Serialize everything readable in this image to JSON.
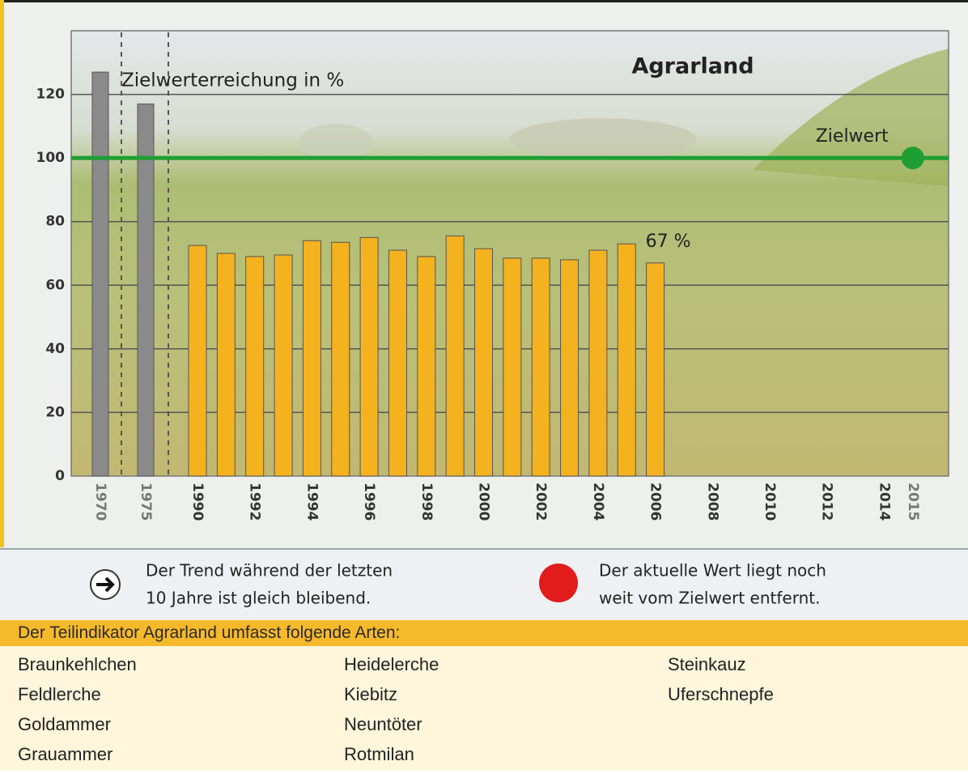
{
  "chart_data": {
    "type": "bar",
    "title": "Agrarland",
    "y_label": "Zielwerterreichung in %",
    "categories": [
      "1970",
      "1975",
      "1990",
      null,
      "1992",
      null,
      "1994",
      null,
      "1996",
      null,
      "1998",
      null,
      "2000",
      null,
      "2002",
      null,
      "2004",
      null,
      "2006",
      null,
      "2008",
      null,
      "2010",
      null,
      "2012",
      null,
      "2014",
      "2015"
    ],
    "values": [
      127,
      117,
      72.5,
      70,
      69,
      69.5,
      74,
      73.5,
      75,
      71,
      69,
      75.5,
      71.5,
      68.5,
      68.5,
      68,
      71,
      73,
      67,
      null,
      null,
      null,
      null,
      null,
      null,
      null,
      null,
      null
    ],
    "value_labels": [
      null,
      null,
      null,
      null,
      null,
      null,
      null,
      null,
      null,
      null,
      null,
      null,
      null,
      null,
      null,
      null,
      null,
      null,
      "67 %",
      null,
      null,
      null,
      null,
      null,
      null,
      null,
      null,
      null
    ],
    "colors": [
      "#8a8a8a",
      "#8a8a8a",
      "#f5b21f",
      "#f5b21f",
      "#f5b21f",
      "#f5b21f",
      "#f5b21f",
      "#f5b21f",
      "#f5b21f",
      "#f5b21f",
      "#f5b21f",
      "#f5b21f",
      "#f5b21f",
      "#f5b21f",
      "#f5b21f",
      "#f5b21f",
      "#f5b21f",
      "#f5b21f",
      "#f5b21f",
      null,
      null,
      null,
      null,
      null,
      null,
      null,
      null,
      null
    ],
    "ylim": [
      0,
      140
    ],
    "yticks": [
      0,
      20,
      40,
      60,
      80,
      100,
      120
    ],
    "grid": true,
    "target": {
      "value": 100,
      "label": "Zielwert",
      "color": "#1e9e32"
    }
  },
  "legend": {
    "trend": [
      "Der Trend während der letzten",
      "10 Jahre ist gleich bleibend."
    ],
    "status": [
      "Der aktuelle Wert liegt noch",
      "weit vom Zielwert entfernt."
    ]
  },
  "species": {
    "title": "Der Teilindikator Agrarland umfasst folgende Arten:",
    "columns": [
      [
        "Braunkehlchen",
        "Feldlerche",
        "Goldammer",
        "Grauammer"
      ],
      [
        "Heidelerche",
        "Kiebitz",
        "Neuntöter",
        "Rotmilan"
      ],
      [
        "Steinkauz",
        "Uferschnepfe"
      ]
    ]
  }
}
